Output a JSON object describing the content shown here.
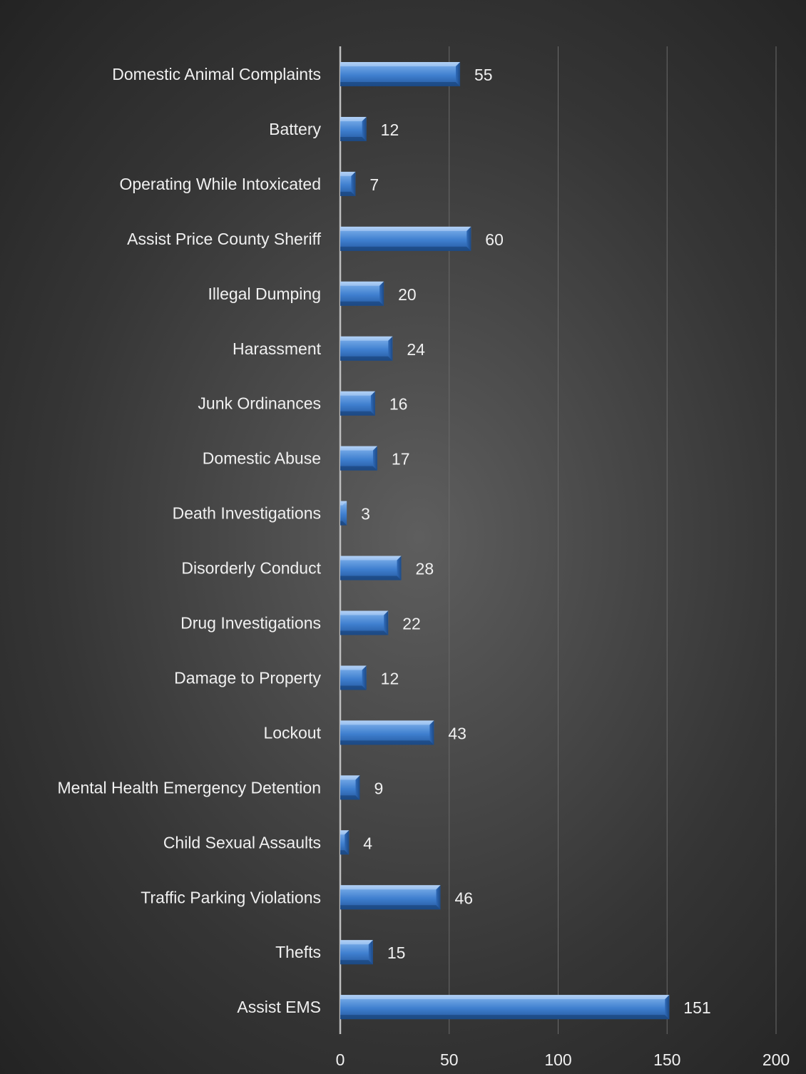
{
  "chart_data": {
    "type": "bar",
    "orientation": "horizontal",
    "categories": [
      "Domestic Animal Complaints",
      "Battery",
      "Operating While Intoxicated",
      "Assist Price County Sheriff",
      "Illegal Dumping",
      "Harassment",
      "Junk Ordinances",
      "Domestic Abuse",
      "Death Investigations",
      "Disorderly Conduct",
      "Drug Investigations",
      "Damage to Property",
      "Lockout",
      "Mental Health Emergency Detention",
      "Child Sexual Assaults",
      "Traffic Parking Violations",
      "Thefts",
      "Assist EMS"
    ],
    "values": [
      55,
      12,
      7,
      60,
      20,
      24,
      16,
      17,
      3,
      28,
      22,
      12,
      43,
      9,
      4,
      46,
      15,
      151
    ],
    "xlim": [
      0,
      200
    ],
    "x_ticks": [
      "0",
      "50",
      "100",
      "150",
      "200"
    ],
    "grid": "vertical",
    "data_labels": true,
    "bar_color": "#4a86d0",
    "background_color": "#3c3c3c",
    "text_color": "#f0f0f0"
  }
}
